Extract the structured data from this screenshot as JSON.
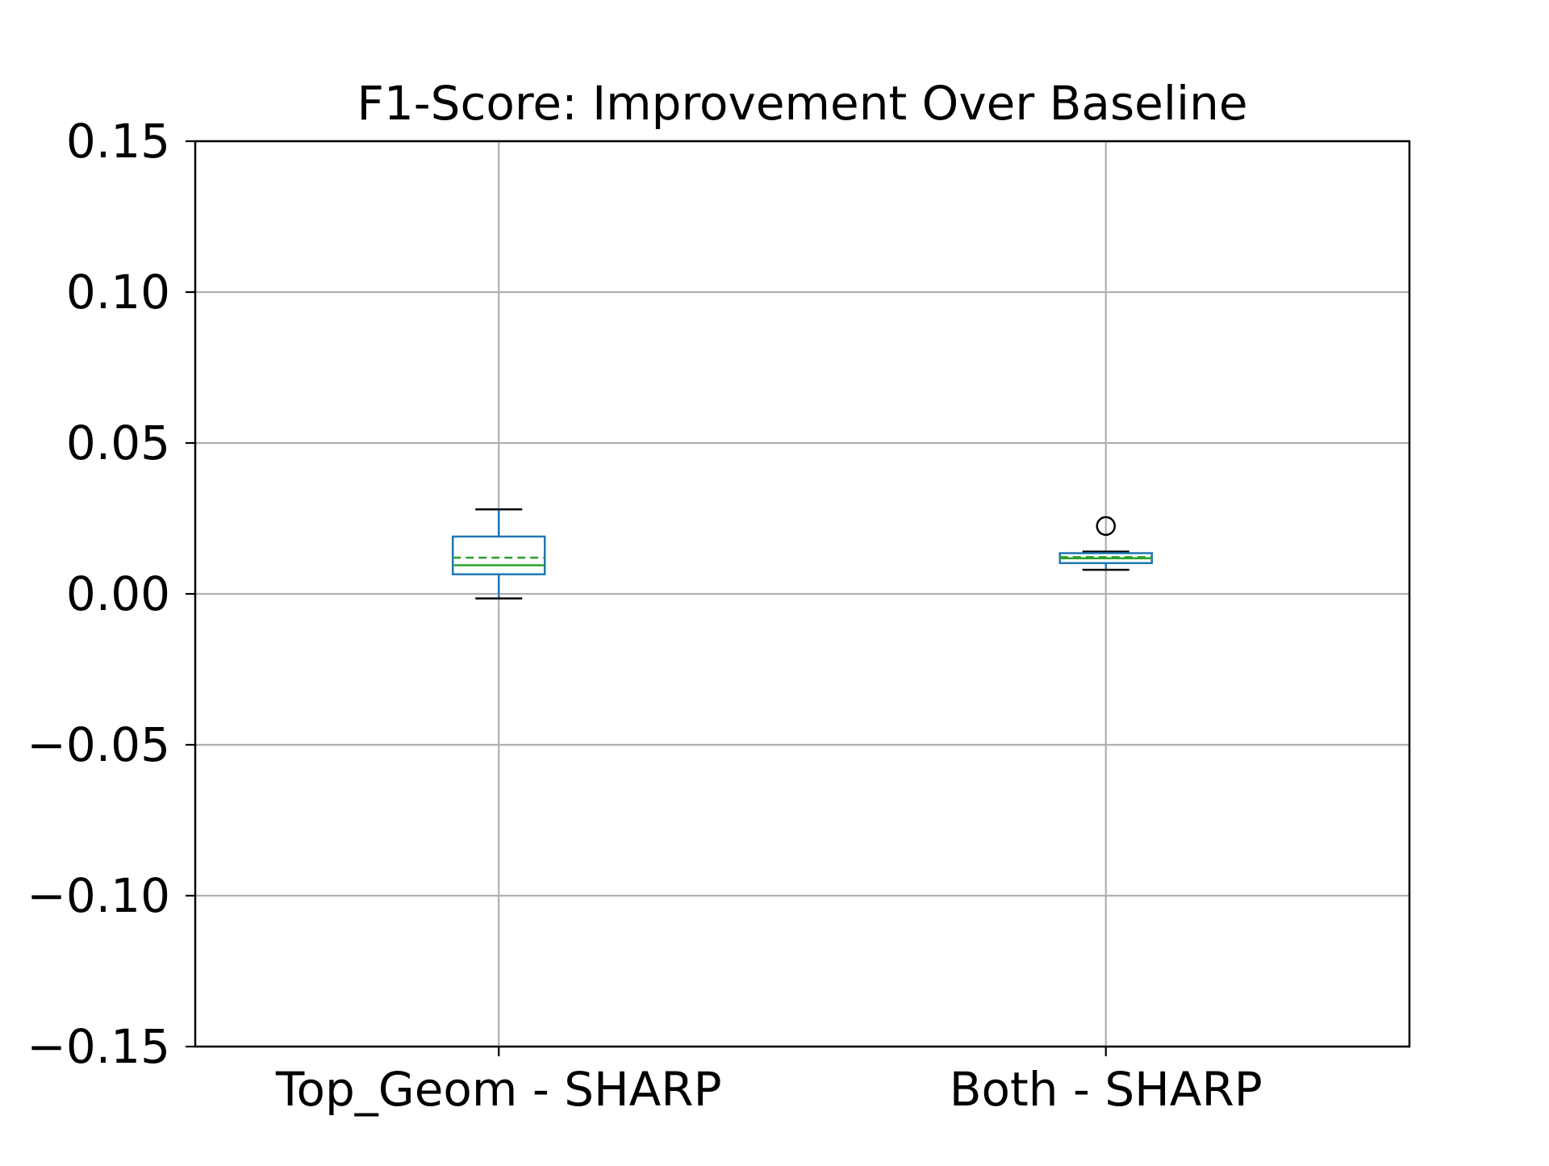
{
  "chart_data": {
    "type": "box",
    "title": "F1-Score: Improvement Over Baseline",
    "xlabel": "",
    "ylabel": "",
    "ylim": [
      -0.15,
      0.15
    ],
    "yticks": [
      0.15,
      0.1,
      0.05,
      0.0,
      -0.05,
      -0.1,
      -0.15
    ],
    "ytick_labels": [
      "0.15",
      "0.10",
      "0.05",
      "0.00",
      "−0.05",
      "−0.10",
      "−0.15"
    ],
    "grid": true,
    "categories": [
      "Top_Geom - SHARP",
      "Both - SHARP"
    ],
    "boxes": [
      {
        "label": "Top_Geom - SHARP",
        "whisker_low": -0.0015,
        "q1": 0.0065,
        "median": 0.0095,
        "mean": 0.012,
        "q3": 0.019,
        "whisker_high": 0.028,
        "outliers": []
      },
      {
        "label": "Both - SHARP",
        "whisker_low": 0.008,
        "q1": 0.0102,
        "median": 0.0118,
        "mean": 0.0122,
        "q3": 0.0135,
        "whisker_high": 0.014,
        "outliers": [
          0.0225
        ]
      }
    ],
    "colors": {
      "box": "#1f77b4",
      "median": "#2ca02c",
      "mean": "#2ca02c",
      "whisker_cap": "#000000",
      "grid": "#b0b0b0",
      "axes": "#000000"
    }
  }
}
